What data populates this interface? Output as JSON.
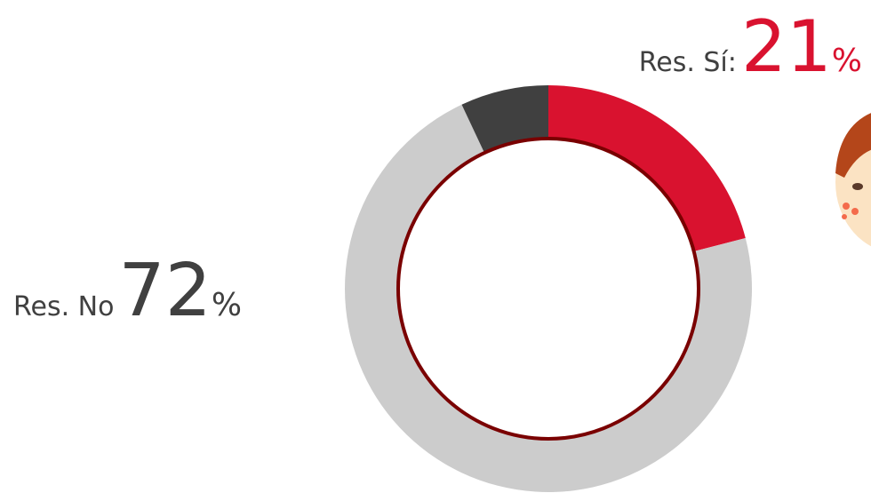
{
  "chart_data": {
    "type": "donut",
    "labels": [
      "Res. Sí:",
      "Res. No",
      null
    ],
    "values": [
      21,
      72,
      7
    ],
    "unit": "%",
    "colors": [
      "#d9122f",
      "#cccccc",
      "#404040"
    ],
    "label_colors": [
      "#d9122f",
      "#404040",
      null
    ]
  }
}
